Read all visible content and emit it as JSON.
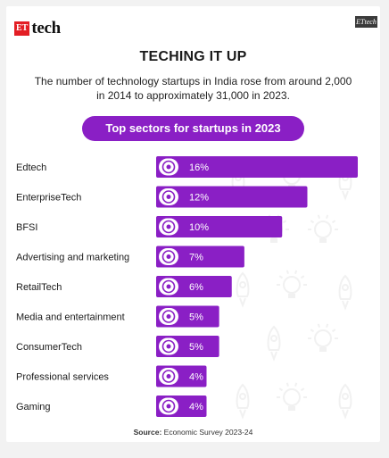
{
  "brand": {
    "et": "ET",
    "tech": "tech",
    "badge": "ETtech"
  },
  "header": {
    "title": "TECHING IT UP",
    "subtitle": "The number of technology startups in India rose from around 2,000 in 2014 to approximately 31,000 in 2023.",
    "pill": "Top sectors for startups in 2023"
  },
  "source": {
    "label": "Source:",
    "text": "Economic Survey 2023-24"
  },
  "colors": {
    "bar": "#8a1fc5",
    "pill": "#8a1fc5",
    "icon_bg": "#ffffff",
    "ghost": "#e6e6e6"
  },
  "chart_data": {
    "type": "bar",
    "orientation": "horizontal",
    "title": "Top sectors for startups in 2023",
    "categories": [
      "Edtech",
      "EnterpriseTech",
      "BFSI",
      "Advertising and marketing",
      "RetailTech",
      "Media and entertainment",
      "ConsumerTech",
      "Professional services",
      "Gaming"
    ],
    "values": [
      16,
      12,
      10,
      7,
      6,
      5,
      5,
      4,
      4
    ],
    "value_labels": [
      "16%",
      "12%",
      "10%",
      "7%",
      "6%",
      "5%",
      "5%",
      "4%",
      "4%"
    ],
    "icons": [
      "graduation-icon",
      "team-icon",
      "bank-icon",
      "megaphone-icon",
      "store-icon",
      "film-icon",
      "shopping-icon",
      "network-icon",
      "gamepad-icon"
    ],
    "unit": "%",
    "xlabel": "",
    "ylabel": ""
  }
}
